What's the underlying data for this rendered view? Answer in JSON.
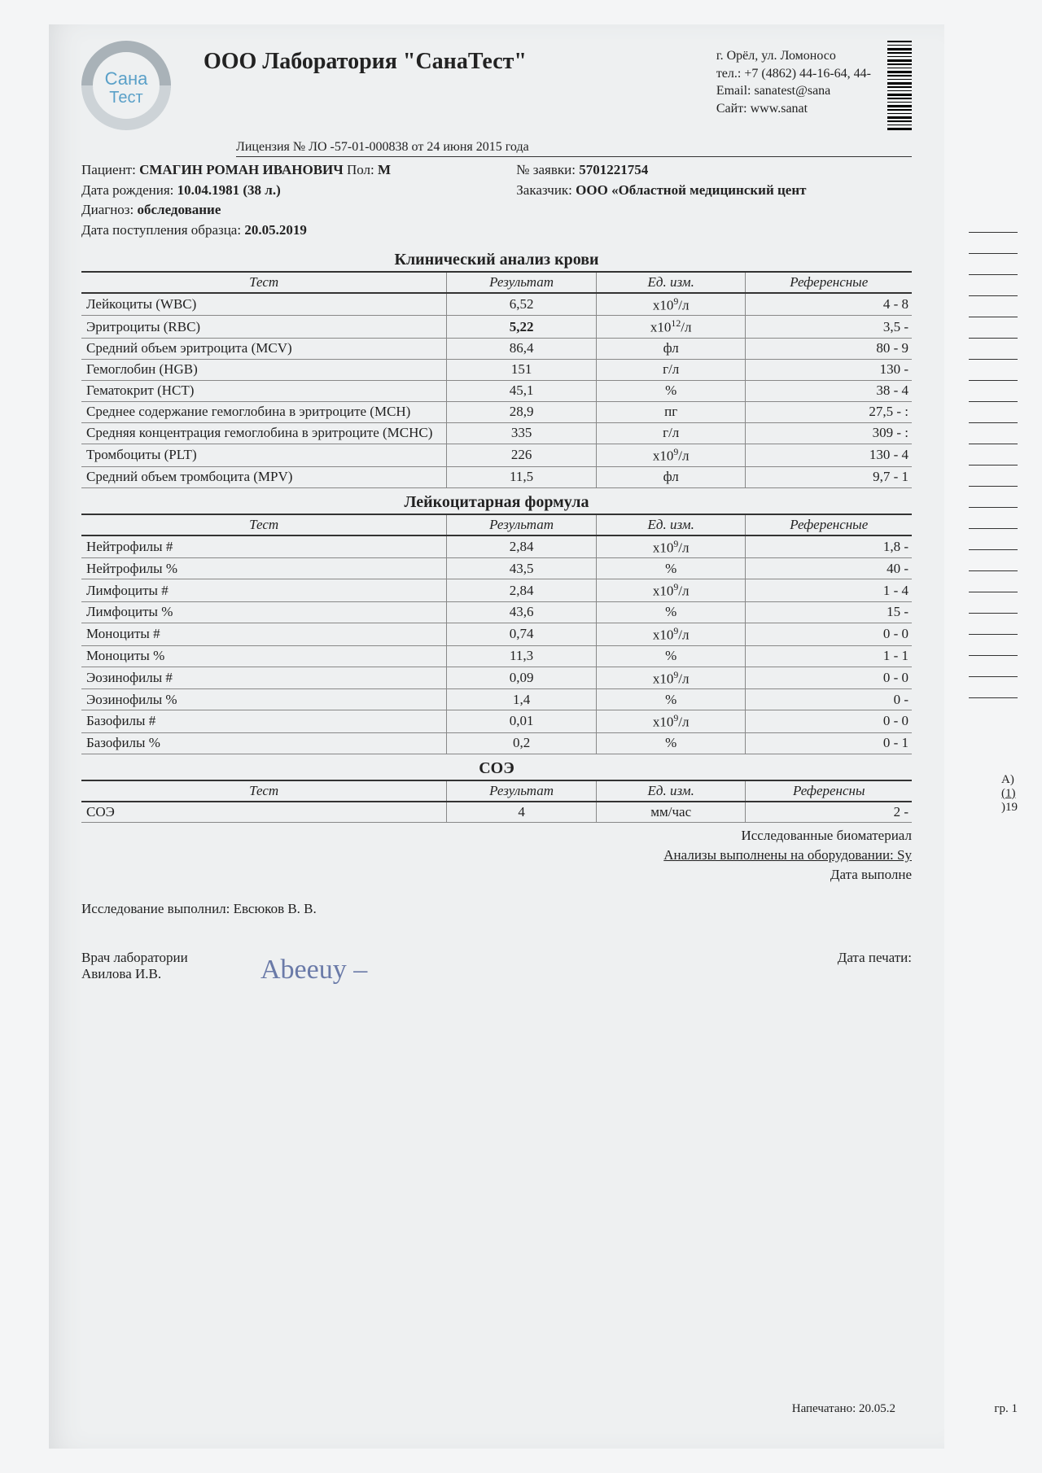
{
  "lab_title": "ООО Лаборатория \"СанаТест\"",
  "contact": {
    "address": "г. Орёл, ул. Ломоносо",
    "phone": "тел.: +7 (4862) 44-16-64, 44-",
    "email": "Email: sanatest@sana",
    "site": "Сайт: www.sanat"
  },
  "license": "Лицензия № ЛО -57-01-000838 от 24 июня 2015 года",
  "meta": {
    "patient_label": "Пациент: ",
    "patient_value": "СМАГИН РОМАН ИВАНОВИЧ",
    "sex_label": " Пол: ",
    "sex_value": "М",
    "dob_label": "Дата рождения: ",
    "dob_value": "10.04.1981 (38 л.)",
    "diag_label": "Диагноз: ",
    "diag_value": "обследование",
    "recv_label": "Дата поступления образца: ",
    "recv_value": "20.05.2019",
    "order_label": "№ заявки: ",
    "order_value": "5701221754",
    "client_label": "Заказчик: ",
    "client_value": "ООО «Областной медицинский цент"
  },
  "columns": {
    "test": "Тест",
    "result": "Результат",
    "unit": "Ед. изм.",
    "ref": "Референсные"
  },
  "columns_ref2": "Референсны",
  "section1": {
    "title": "Клинический анализ крови",
    "rows": [
      {
        "name": "Лейкоциты (WBC)",
        "val": "6,52",
        "unit_html": "x10<span class='sup'>9</span>/л",
        "ref": "4 - 8"
      },
      {
        "name": "Эритроциты (RBC)",
        "val": "5,22",
        "bold": true,
        "unit_html": "x10<span class='sup'>12</span>/л",
        "ref": "3,5 -"
      },
      {
        "name": "Средний объем эритроцита (MCV)",
        "val": "86,4",
        "unit_html": "фл",
        "ref": "80 - 9"
      },
      {
        "name": "Гемоглобин (HGB)",
        "val": "151",
        "unit_html": "г/л",
        "ref": "130 - "
      },
      {
        "name": "Гематокрит (HCT)",
        "val": "45,1",
        "unit_html": "%",
        "ref": "38 - 4"
      },
      {
        "name": "Среднее содержание гемоглобина в эритроците (MCH)",
        "val": "28,9",
        "unit_html": "пг",
        "ref": "27,5 - :"
      },
      {
        "name": "Средняя концентрация гемоглобина в эритроците (MCHC)",
        "val": "335",
        "unit_html": "г/л",
        "ref": "309 - :"
      },
      {
        "name": "Тромбоциты (PLT)",
        "val": "226",
        "unit_html": "x10<span class='sup'>9</span>/л",
        "ref": "130 - 4"
      },
      {
        "name": "Средний объем тромбоцита (MPV)",
        "val": "11,5",
        "unit_html": "фл",
        "ref": "9,7 - 1"
      }
    ]
  },
  "section2": {
    "title": "Лейкоцитарная формула",
    "rows": [
      {
        "name": "Нейтрофилы #",
        "val": "2,84",
        "unit_html": "x10<span class='sup'>9</span>/л",
        "ref": "1,8 -"
      },
      {
        "name": "Нейтрофилы %",
        "val": "43,5",
        "unit_html": "%",
        "ref": "40 - "
      },
      {
        "name": "Лимфоциты #",
        "val": "2,84",
        "unit_html": "x10<span class='sup'>9</span>/л",
        "ref": "1 - 4"
      },
      {
        "name": "Лимфоциты %",
        "val": "43,6",
        "unit_html": "%",
        "ref": "15 - "
      },
      {
        "name": "Моноциты #",
        "val": "0,74",
        "unit_html": "x10<span class='sup'>9</span>/л",
        "ref": "0 - 0"
      },
      {
        "name": "Моноциты %",
        "val": "11,3",
        "unit_html": "%",
        "ref": "1 - 1"
      },
      {
        "name": "Эозинофилы #",
        "val": "0,09",
        "unit_html": "x10<span class='sup'>9</span>/л",
        "ref": "0 - 0"
      },
      {
        "name": "Эозинофилы %",
        "val": "1,4",
        "unit_html": "%",
        "ref": "0 - "
      },
      {
        "name": "Базофилы #",
        "val": "0,01",
        "unit_html": "x10<span class='sup'>9</span>/л",
        "ref": "0 - 0"
      },
      {
        "name": "Базофилы %",
        "val": "0,2",
        "unit_html": "%",
        "ref": "0 - 1"
      }
    ]
  },
  "section3": {
    "title": "СОЭ",
    "rows": [
      {
        "name": "СОЭ",
        "val": "4",
        "unit_html": "мм/час",
        "ref": "2 - "
      }
    ]
  },
  "tail": {
    "line1": "Исследованные биоматериал",
    "line2": "Анализы выполнены на оборудовании: Sy",
    "line3": "Дата выполне"
  },
  "performer": "Исследование выполнил: Евсюков В. В.",
  "doctor_label": "Врач лаборатории",
  "doctor_name": "Авилова И.В.",
  "signature": "Abeeuy –",
  "print_date_label": "Дата печати:",
  "printed": "Напечатано: 20.05.2",
  "side": {
    "a": "A)",
    "b": "(1)",
    "c": ")19",
    "pg": "гр. 1"
  },
  "logo": {
    "top": "Сана",
    "bottom": "Тест",
    "ring": "#a9b2b8",
    "text": "#5aa0c8"
  }
}
